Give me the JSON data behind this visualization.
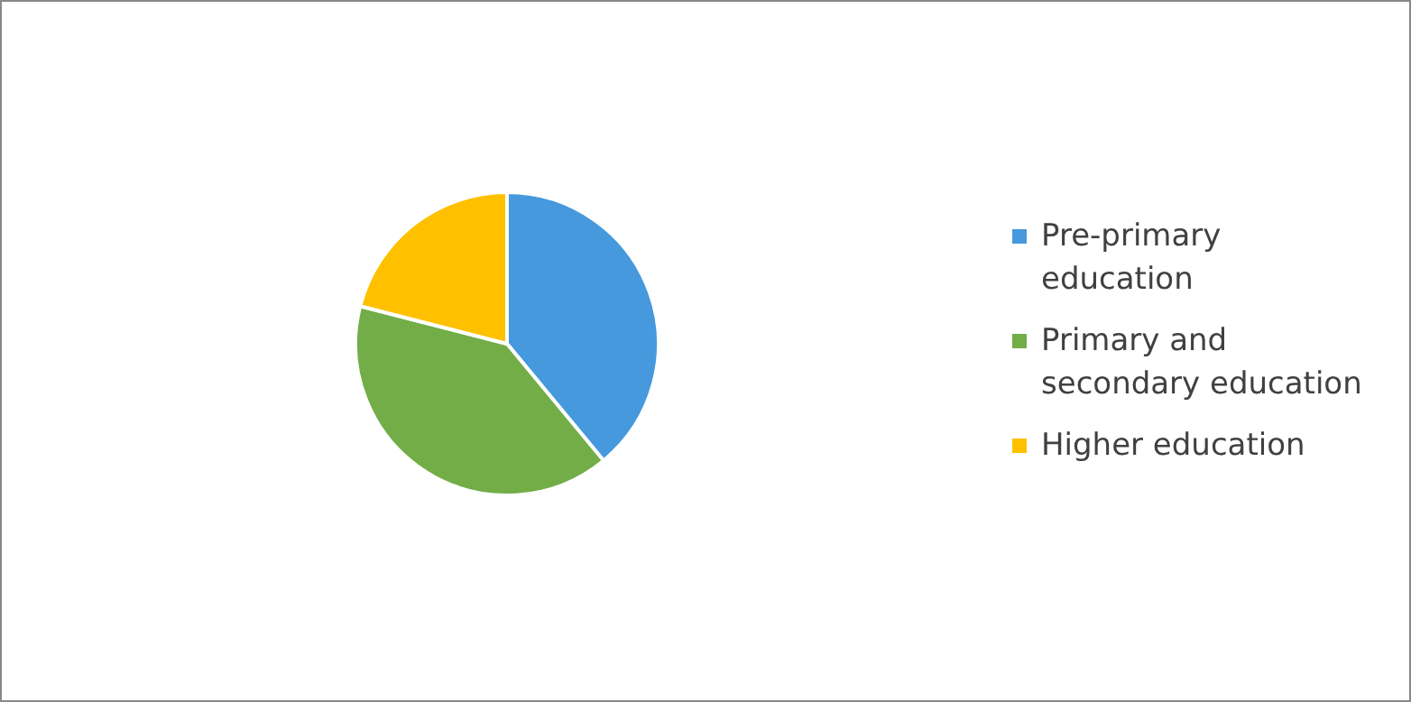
{
  "chart_data": {
    "type": "pie",
    "categories": [
      "Pre-primary education",
      "Primary and secondary education",
      "Higher education"
    ],
    "values": [
      39,
      40,
      21
    ],
    "colors": [
      "#4599dc",
      "#72ad47",
      "#ffc000"
    ],
    "legend": "right"
  }
}
